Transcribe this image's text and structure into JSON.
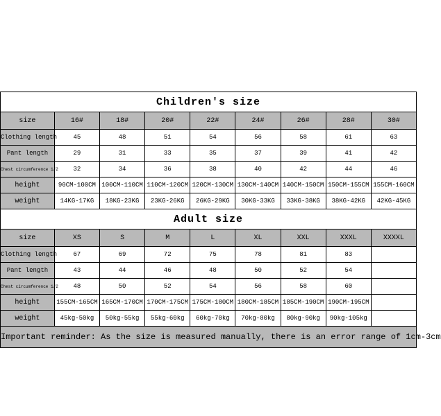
{
  "children": {
    "title": "Children's size",
    "headers": [
      "size",
      "16#",
      "18#",
      "20#",
      "22#",
      "24#",
      "26#",
      "28#",
      "30#"
    ],
    "rows": [
      {
        "label": "Clothing length",
        "tiny": false,
        "cells": [
          "45",
          "48",
          "51",
          "54",
          "56",
          "58",
          "61",
          "63"
        ]
      },
      {
        "label": "Pant length",
        "tiny": false,
        "cells": [
          "29",
          "31",
          "33",
          "35",
          "37",
          "39",
          "41",
          "42"
        ]
      },
      {
        "label": "Chest circumference 1/2",
        "tiny": true,
        "cells": [
          "32",
          "34",
          "36",
          "38",
          "40",
          "42",
          "44",
          "46"
        ]
      },
      {
        "label": "height",
        "tiny": false,
        "mid": true,
        "cells": [
          "90CM-100CM",
          "100CM-110CM",
          "110CM-120CM",
          "120CM-130CM",
          "130CM-140CM",
          "140CM-150CM",
          "150CM-155CM",
          "155CM-160CM"
        ]
      },
      {
        "label": "weight",
        "tiny": false,
        "mid": true,
        "cells": [
          "14KG-17KG",
          "18KG-23KG",
          "23KG-26KG",
          "26KG-29KG",
          "30KG-33KG",
          "33KG-38KG",
          "38KG-42KG",
          "42KG-45KG"
        ]
      }
    ]
  },
  "adult": {
    "title": "Adult size",
    "headers": [
      "size",
      "XS",
      "S",
      "M",
      "L",
      "XL",
      "XXL",
      "XXXL",
      "XXXXL"
    ],
    "rows": [
      {
        "label": "Clothing length",
        "tiny": false,
        "cells": [
          "67",
          "69",
          "72",
          "75",
          "78",
          "81",
          "83",
          ""
        ]
      },
      {
        "label": "Pant length",
        "tiny": false,
        "cells": [
          "43",
          "44",
          "46",
          "48",
          "50",
          "52",
          "54",
          ""
        ]
      },
      {
        "label": "Chest circumference 1/2",
        "tiny": true,
        "cells": [
          "48",
          "50",
          "52",
          "54",
          "56",
          "58",
          "60",
          ""
        ]
      },
      {
        "label": "height",
        "tiny": false,
        "mid": true,
        "cells": [
          "155CM-165CM",
          "165CM-170CM",
          "170CM-175CM",
          "175CM-180CM",
          "180CM-185CM",
          "185CM-190CM",
          "190CM-195CM",
          ""
        ]
      },
      {
        "label": "weight",
        "tiny": false,
        "mid": true,
        "cells": [
          "45kg-50kg",
          "50kg-55kg",
          "55kg-60kg",
          "60kg-70kg",
          "70kg-80kg",
          "80kg-90kg",
          "90kg-105kg",
          ""
        ]
      }
    ]
  },
  "reminder": "Important reminder: As the size is measured manually, there is an error range of 1cm-3cm"
}
